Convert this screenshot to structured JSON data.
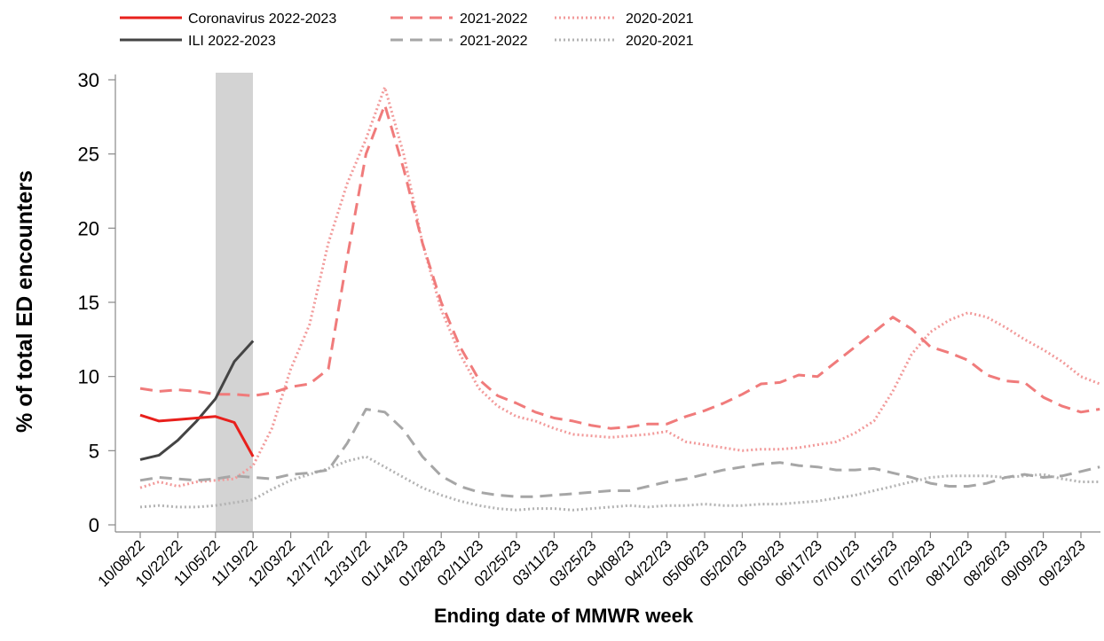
{
  "chart_data": {
    "type": "line",
    "xlabel": "Ending date of MMWR week",
    "ylabel": "% of total ED encounters",
    "categories": [
      "10/08/22",
      null,
      "10/22/22",
      null,
      "11/05/22",
      null,
      "11/19/22",
      null,
      "12/03/22",
      null,
      "12/17/22",
      null,
      "12/31/22",
      null,
      "01/14/23",
      null,
      "01/28/23",
      null,
      "02/11/23",
      null,
      "02/25/23",
      null,
      "03/11/23",
      null,
      "03/25/23",
      null,
      "04/08/23",
      null,
      "04/22/23",
      null,
      "05/06/23",
      null,
      "05/20/23",
      null,
      "06/03/23",
      null,
      "06/17/23",
      null,
      "07/01/23",
      null,
      "07/15/23",
      null,
      "07/29/23",
      null,
      "08/12/23",
      null,
      "08/26/23",
      null,
      "09/09/23",
      null,
      "09/23/23",
      null
    ],
    "ylim": [
      0,
      30
    ],
    "yticks": [
      0,
      5,
      10,
      15,
      20,
      25,
      30
    ],
    "series": [
      {
        "name": "Coronavirus 2022-2023",
        "color": "#e8201c",
        "style": "solid",
        "values": [
          7.4,
          7.0,
          7.1,
          7.2,
          7.3,
          6.9,
          4.6,
          null,
          null,
          null,
          null,
          null,
          null,
          null,
          null,
          null,
          null,
          null,
          null,
          null,
          null,
          null,
          null,
          null,
          null,
          null,
          null,
          null,
          null,
          null,
          null,
          null,
          null,
          null,
          null,
          null,
          null,
          null,
          null,
          null,
          null,
          null,
          null,
          null,
          null,
          null,
          null,
          null,
          null,
          null,
          null,
          null
        ]
      },
      {
        "name": "ILI 2022-2023",
        "color": "#444444",
        "style": "solid",
        "values": [
          4.4,
          4.7,
          5.7,
          7.0,
          8.5,
          11.0,
          12.4,
          null,
          null,
          null,
          null,
          null,
          null,
          null,
          null,
          null,
          null,
          null,
          null,
          null,
          null,
          null,
          null,
          null,
          null,
          null,
          null,
          null,
          null,
          null,
          null,
          null,
          null,
          null,
          null,
          null,
          null,
          null,
          null,
          null,
          null,
          null,
          null,
          null,
          null,
          null,
          null,
          null,
          null,
          null,
          null,
          null
        ]
      },
      {
        "name": "2021-2022",
        "color": "#f07b7b",
        "style": "dashed",
        "values": [
          9.2,
          9.0,
          9.1,
          9.0,
          8.8,
          8.8,
          8.7,
          8.9,
          9.3,
          9.5,
          10.5,
          18.0,
          25.0,
          28.3,
          24.0,
          19.0,
          15.0,
          12.0,
          9.8,
          8.7,
          8.2,
          7.6,
          7.2,
          7.0,
          6.7,
          6.5,
          6.6,
          6.8,
          6.8,
          7.3,
          7.7,
          8.2,
          8.8,
          9.5,
          9.6,
          10.1,
          10.0,
          11.0,
          12.0,
          13.0,
          14.0,
          13.2,
          12.0,
          11.6,
          11.1,
          10.1,
          9.7,
          9.6,
          8.6,
          8.0,
          7.6,
          7.8
        ]
      },
      {
        "name": "2021-2022",
        "color": "#a6a6a6",
        "style": "dashed",
        "values": [
          3.0,
          3.2,
          3.1,
          3.0,
          3.1,
          3.3,
          3.2,
          3.1,
          3.4,
          3.5,
          3.7,
          5.5,
          7.8,
          7.6,
          6.4,
          4.6,
          3.3,
          2.6,
          2.2,
          2.0,
          1.9,
          1.9,
          2.0,
          2.1,
          2.2,
          2.3,
          2.3,
          2.6,
          2.9,
          3.1,
          3.4,
          3.7,
          3.9,
          4.1,
          4.2,
          4.0,
          3.9,
          3.7,
          3.7,
          3.8,
          3.5,
          3.2,
          2.8,
          2.6,
          2.6,
          2.8,
          3.2,
          3.4,
          3.2,
          3.3,
          3.6,
          3.9
        ]
      },
      {
        "name": "2020-2021",
        "color": "#f29a9a",
        "style": "dotted",
        "values": [
          2.5,
          2.9,
          2.6,
          2.9,
          3.0,
          3.1,
          4.0,
          6.5,
          10.5,
          13.5,
          19.0,
          23.0,
          26.0,
          29.5,
          25.0,
          19.0,
          14.5,
          11.5,
          9.2,
          8.0,
          7.3,
          7.0,
          6.5,
          6.1,
          6.0,
          5.9,
          6.0,
          6.1,
          6.3,
          5.6,
          5.4,
          5.2,
          5.0,
          5.1,
          5.1,
          5.2,
          5.4,
          5.6,
          6.2,
          7.0,
          9.0,
          11.5,
          13.0,
          13.8,
          14.3,
          14.0,
          13.3,
          12.5,
          11.8,
          11.0,
          10.0,
          9.5
        ]
      },
      {
        "name": "2020-2021",
        "color": "#b3b3b3",
        "style": "dotted",
        "values": [
          1.2,
          1.3,
          1.2,
          1.2,
          1.3,
          1.5,
          1.7,
          2.4,
          3.0,
          3.4,
          3.8,
          4.3,
          4.6,
          3.9,
          3.2,
          2.5,
          2.0,
          1.6,
          1.3,
          1.1,
          1.0,
          1.1,
          1.1,
          1.0,
          1.1,
          1.2,
          1.3,
          1.2,
          1.3,
          1.3,
          1.4,
          1.3,
          1.3,
          1.4,
          1.4,
          1.5,
          1.6,
          1.8,
          2.0,
          2.3,
          2.6,
          2.9,
          3.2,
          3.3,
          3.3,
          3.3,
          3.2,
          3.3,
          3.4,
          3.1,
          2.9,
          2.9
        ]
      }
    ]
  }
}
